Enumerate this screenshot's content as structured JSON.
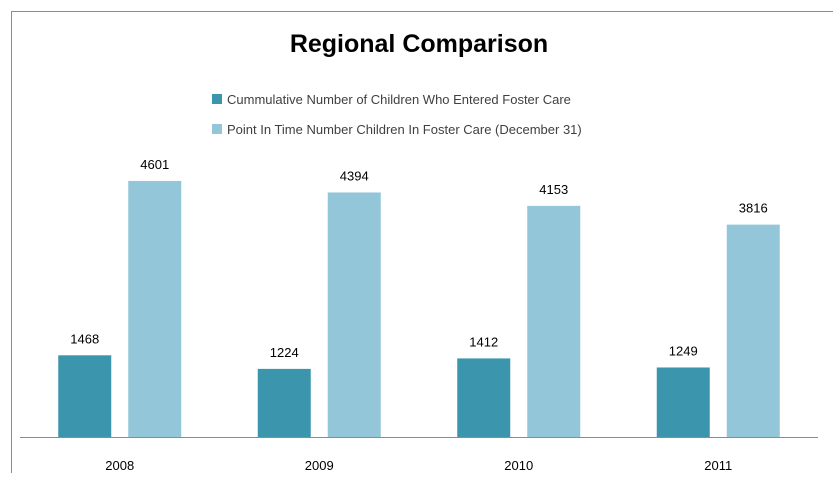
{
  "chart_data": {
    "type": "bar",
    "title": "Regional Comparison",
    "xlabel": "",
    "ylabel": "",
    "categories": [
      "2008",
      "2009",
      "2010",
      "2011"
    ],
    "series": [
      {
        "name": "Cummulative Number of Children Who Entered Foster Care",
        "values": [
          1468,
          1224,
          1412,
          1249
        ],
        "color": "#3a95ad"
      },
      {
        "name": "Point In Time Number Children In Foster Care (December 31)",
        "values": [
          4601,
          4394,
          4153,
          3816
        ],
        "color": "#93c6d9"
      }
    ],
    "ylim": [
      0,
      4600
    ],
    "grid": false,
    "legend_position": "top"
  }
}
